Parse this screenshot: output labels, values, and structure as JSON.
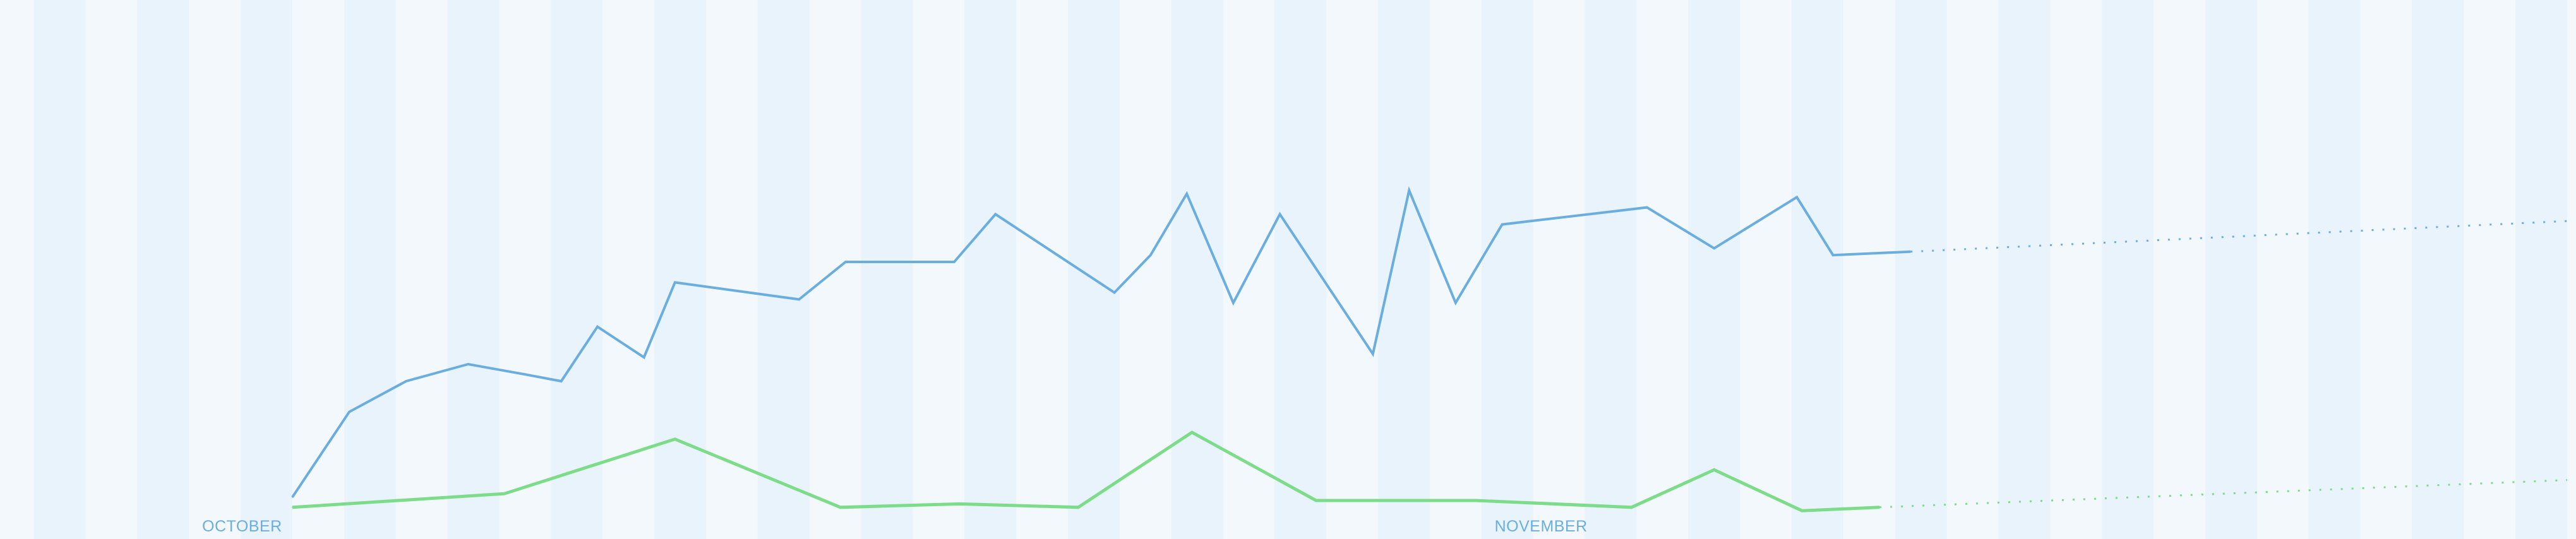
{
  "colors": {
    "background": "#f3f8fc",
    "stripe": "#e8f3fb",
    "series_1": "#6aaee0",
    "series_2": "#7ddc8a",
    "month_label": "#6aaee0"
  },
  "chart_data": {
    "type": "line",
    "title": "",
    "xlabel": "",
    "ylabel": "",
    "x_unit": "day index (0 = Oct 1)",
    "xlim": [
      0,
      44
    ],
    "ylim": [
      0,
      100
    ],
    "grid": false,
    "axes_visible": false,
    "background": "alternating vertical day stripes",
    "month_labels": [
      {
        "label": "OCTOBER",
        "x": 0
      },
      {
        "label": "NOVEMBER",
        "x": 25
      }
    ],
    "series": [
      {
        "color": "#6aaee0",
        "style": "solid then dotted projection",
        "points": [
          [
            0,
            6
          ],
          [
            1.1,
            31
          ],
          [
            2.2,
            40
          ],
          [
            3.4,
            45
          ],
          [
            4.5,
            42
          ],
          [
            5.2,
            40
          ],
          [
            5.9,
            56
          ],
          [
            6.8,
            47
          ],
          [
            7.4,
            69
          ],
          [
            9.8,
            64
          ],
          [
            10.7,
            75
          ],
          [
            11.6,
            75
          ],
          [
            12.8,
            75
          ],
          [
            13.6,
            89
          ],
          [
            15.9,
            66
          ],
          [
            16.6,
            77
          ],
          [
            17.3,
            95
          ],
          [
            18.2,
            63
          ],
          [
            19.1,
            89
          ],
          [
            20.9,
            48
          ],
          [
            21.6,
            96
          ],
          [
            22.5,
            63
          ],
          [
            23.4,
            86
          ],
          [
            26.2,
            91
          ],
          [
            27.5,
            79
          ],
          [
            29.1,
            94
          ],
          [
            29.8,
            77
          ],
          [
            31.3,
            78
          ]
        ],
        "projection": [
          [
            31.3,
            78
          ],
          [
            44,
            87
          ]
        ]
      },
      {
        "color": "#7ddc8a",
        "style": "solid then dotted projection",
        "points": [
          [
            0,
            3
          ],
          [
            4.1,
            7
          ],
          [
            7.4,
            23
          ],
          [
            10.6,
            3
          ],
          [
            12.9,
            4
          ],
          [
            15.2,
            3
          ],
          [
            17.4,
            25
          ],
          [
            19.8,
            5
          ],
          [
            22.9,
            5
          ],
          [
            25.9,
            3
          ],
          [
            27.5,
            14
          ],
          [
            29.2,
            2
          ],
          [
            30.7,
            3
          ]
        ],
        "projection": [
          [
            30.7,
            3
          ],
          [
            44,
            11
          ]
        ]
      }
    ]
  }
}
